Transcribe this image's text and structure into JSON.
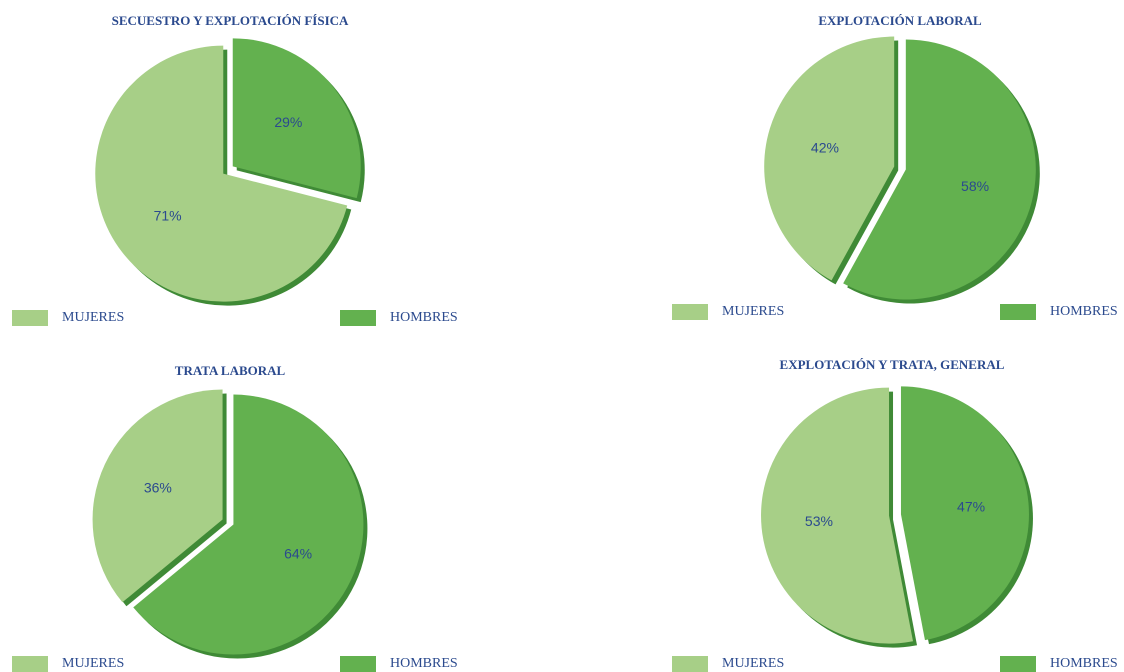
{
  "chart_data": [
    {
      "type": "pie",
      "title": "SECUESTRO Y EXPLOTACIÓN FÍSICA",
      "categories": [
        "MUJERES",
        "HOMBRES"
      ],
      "values": [
        71,
        29
      ],
      "value_labels": [
        "71%",
        "29%"
      ],
      "colors": [
        "#a7cf87",
        "#63b14f"
      ]
    },
    {
      "type": "pie",
      "title": "EXPLOTACIÓN LABORAL",
      "categories": [
        "MUJERES",
        "HOMBRES"
      ],
      "values": [
        42,
        58
      ],
      "value_labels": [
        "42%",
        "58%"
      ],
      "colors": [
        "#a7cf87",
        "#63b14f"
      ]
    },
    {
      "type": "pie",
      "title": "TRATA LABORAL",
      "categories": [
        "MUJERES",
        "HOMBRES"
      ],
      "values": [
        36,
        64
      ],
      "value_labels": [
        "36%",
        "64%"
      ],
      "colors": [
        "#a7cf87",
        "#63b14f"
      ]
    },
    {
      "type": "pie",
      "title": "EXPLOTACIÓN Y TRATA, GENERAL",
      "categories": [
        "MUJERES",
        "HOMBRES"
      ],
      "values": [
        53,
        47
      ],
      "value_labels": [
        "53%",
        "47%"
      ],
      "colors": [
        "#a7cf87",
        "#63b14f"
      ]
    }
  ]
}
